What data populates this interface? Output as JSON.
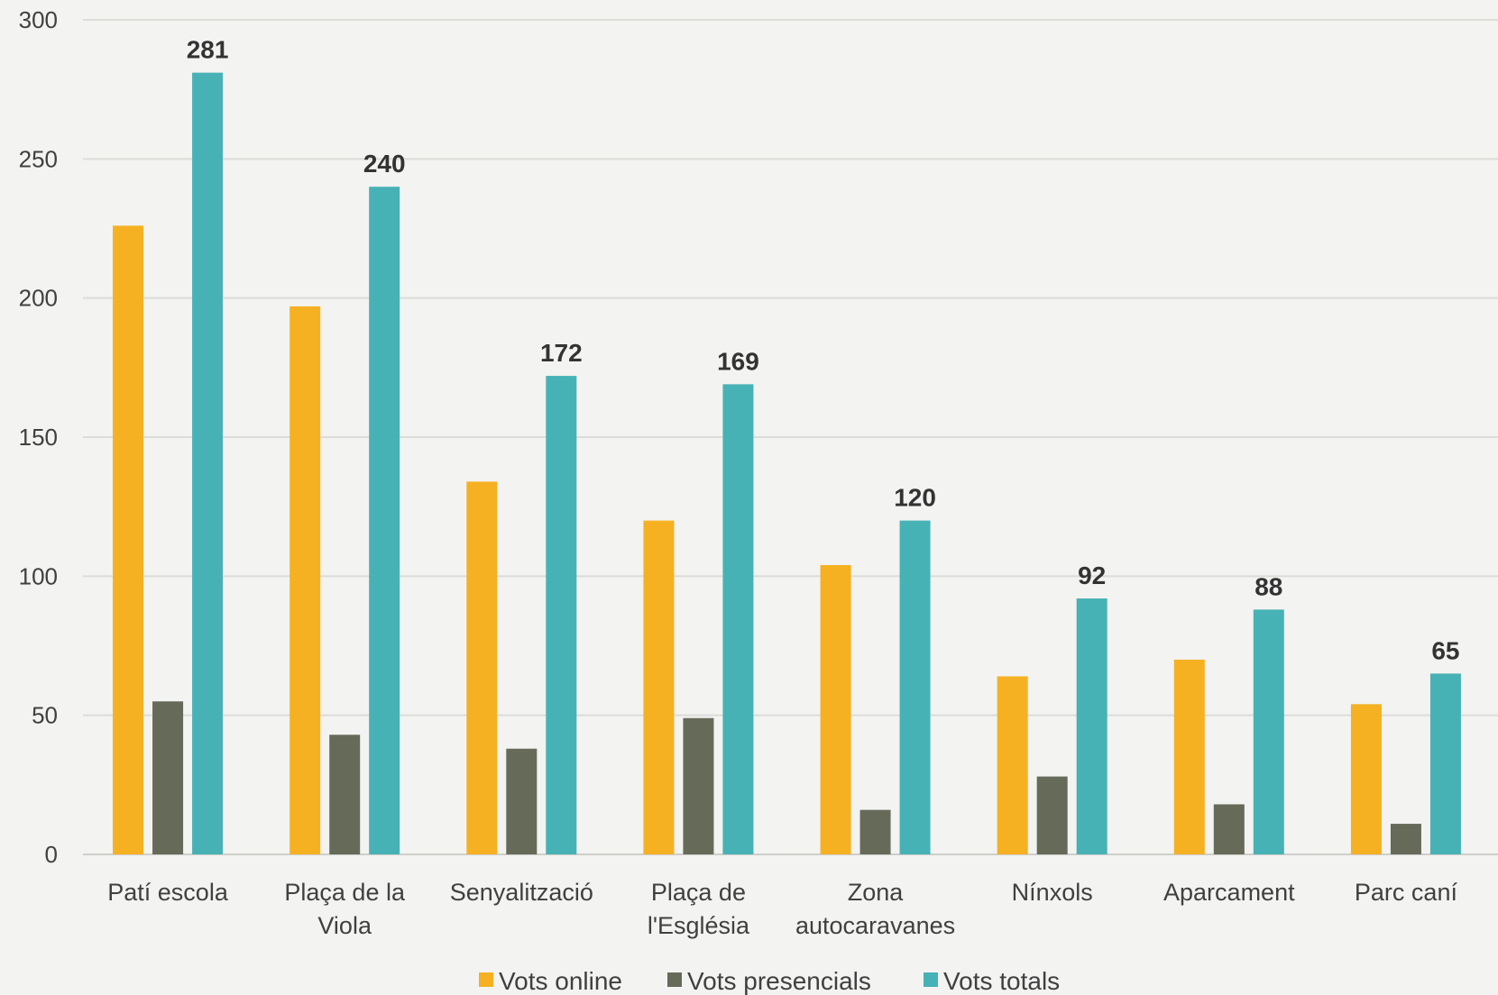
{
  "chart_data": {
    "type": "bar",
    "title": "",
    "xlabel": "",
    "ylabel": "",
    "ylim": [
      0,
      300
    ],
    "yticks": [
      0,
      50,
      100,
      150,
      200,
      250,
      300
    ],
    "grid": true,
    "legend_position": "bottom",
    "categories": [
      [
        "Patí escola"
      ],
      [
        "Plaça de la",
        "Viola"
      ],
      [
        "Senyalització"
      ],
      [
        "Plaça de",
        "l'Església"
      ],
      [
        "Zona",
        "autocaravanes"
      ],
      [
        "Nínxols"
      ],
      [
        "Aparcament"
      ],
      [
        "Parc caní"
      ]
    ],
    "series": [
      {
        "name": "Vots online",
        "color": "#f5b122",
        "values": [
          226,
          197,
          134,
          120,
          104,
          64,
          70,
          54
        ],
        "show_labels": false
      },
      {
        "name": "Vots presencials",
        "color": "#666a59",
        "values": [
          55,
          43,
          38,
          49,
          16,
          28,
          18,
          11
        ],
        "show_labels": false
      },
      {
        "name": "Vots totals",
        "color": "#47b2b5",
        "values": [
          281,
          240,
          172,
          169,
          120,
          92,
          88,
          65
        ],
        "show_labels": true
      }
    ]
  }
}
